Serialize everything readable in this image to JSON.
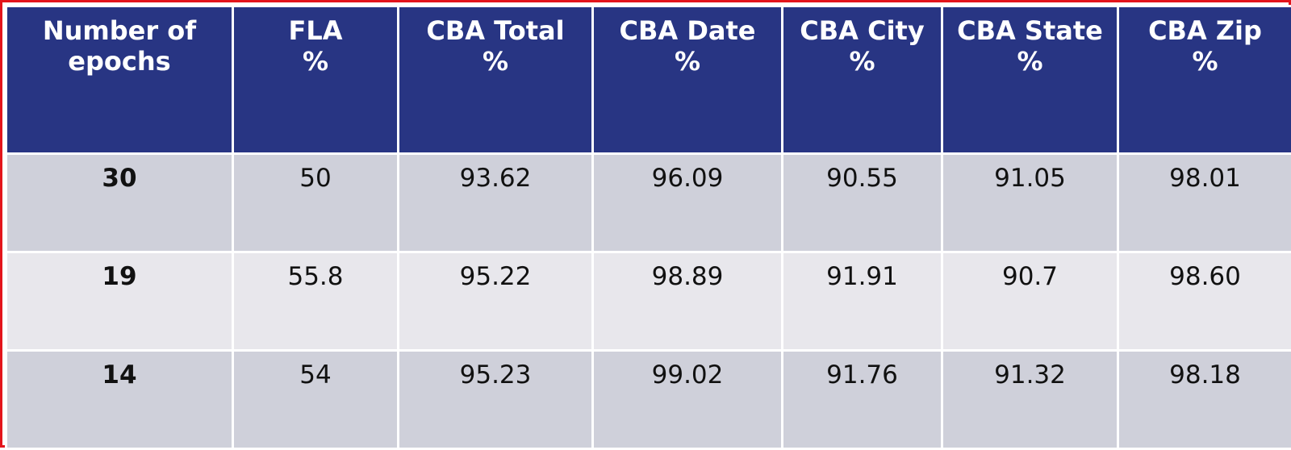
{
  "table": {
    "columns": [
      {
        "line1": "Number of",
        "line2": "epochs"
      },
      {
        "line1": "FLA",
        "line2": "%"
      },
      {
        "line1": "CBA Total",
        "line2": "%"
      },
      {
        "line1": "CBA Date",
        "line2": "%"
      },
      {
        "line1": "CBA City",
        "line2": "%"
      },
      {
        "line1": "CBA State",
        "line2": "%"
      },
      {
        "line1": "CBA Zip",
        "line2": "%"
      }
    ],
    "rows": [
      [
        "30",
        "50",
        "93.62",
        "96.09",
        "90.55",
        "91.05",
        "98.01"
      ],
      [
        "19",
        "55.8",
        "95.22",
        "98.89",
        "91.91",
        "90.7",
        "98.60"
      ],
      [
        "14",
        "54",
        "95.23",
        "99.02",
        "91.76",
        "91.32",
        "98.18"
      ]
    ]
  },
  "colors": {
    "header_bg": "#283583",
    "header_text": "#ffffff",
    "row_dark": "#cfd0da",
    "row_light": "#e8e7ec",
    "border_accent": "#e3141b"
  }
}
